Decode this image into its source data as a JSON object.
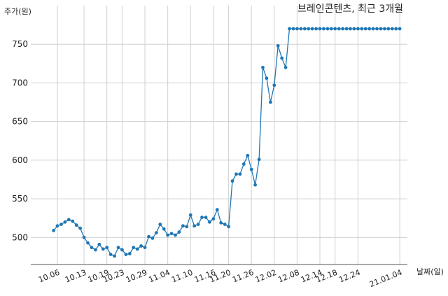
{
  "chart_data": {
    "type": "line",
    "title": "브레인콘텐츠, 최근 3개월",
    "xlabel": "날짜(일)",
    "ylabel": "주가(원)",
    "ylim": [
      465,
      800
    ],
    "yticks": [
      500,
      550,
      600,
      650,
      700,
      750
    ],
    "xlim": [
      "2020-09-29",
      "2021-01-06"
    ],
    "xtick_dates": [
      "2020-10-06",
      "2020-10-13",
      "2020-10-19",
      "2020-10-23",
      "2020-10-29",
      "2020-11-04",
      "2020-11-10",
      "2020-11-16",
      "2020-11-20",
      "2020-11-26",
      "2020-12-02",
      "2020-12-08",
      "2020-12-14",
      "2020-12-18",
      "2020-12-24",
      "2021-01-04"
    ],
    "xtick_labels": [
      "10.06",
      "10.13",
      "10.19",
      "10.23",
      "10.29",
      "11.04",
      "11.10",
      "11.16",
      "11.20",
      "11.26",
      "12.02",
      "12.08",
      "12.14",
      "12.18",
      "12.24",
      "21.01.04"
    ],
    "grid": true,
    "legend": "none",
    "color": "#1f77b4",
    "series": [
      {
        "x": [
          "2020-10-05",
          "2020-10-06",
          "2020-10-07",
          "2020-10-08",
          "2020-10-09",
          "2020-10-10",
          "2020-10-11",
          "2020-10-12",
          "2020-10-13",
          "2020-10-14",
          "2020-10-15",
          "2020-10-16",
          "2020-10-17",
          "2020-10-18",
          "2020-10-19",
          "2020-10-20",
          "2020-10-21",
          "2020-10-22",
          "2020-10-23",
          "2020-10-24",
          "2020-10-25",
          "2020-10-26",
          "2020-10-27",
          "2020-10-28",
          "2020-10-29",
          "2020-10-30",
          "2020-10-31",
          "2020-11-01",
          "2020-11-02",
          "2020-11-03",
          "2020-11-04",
          "2020-11-05",
          "2020-11-06",
          "2020-11-07",
          "2020-11-08",
          "2020-11-09",
          "2020-11-10",
          "2020-11-11",
          "2020-11-12",
          "2020-11-13",
          "2020-11-14",
          "2020-11-15",
          "2020-11-16",
          "2020-11-17",
          "2020-11-18",
          "2020-11-19",
          "2020-11-20",
          "2020-11-21",
          "2020-11-22",
          "2020-11-23",
          "2020-11-24",
          "2020-11-25",
          "2020-11-26",
          "2020-11-27",
          "2020-11-28",
          "2020-11-29",
          "2020-11-30",
          "2020-12-01",
          "2020-12-02",
          "2020-12-03",
          "2020-12-04",
          "2020-12-05",
          "2020-12-06",
          "2020-12-07",
          "2020-12-08",
          "2020-12-09",
          "2020-12-10",
          "2020-12-11",
          "2020-12-12",
          "2020-12-13",
          "2020-12-14",
          "2020-12-15",
          "2020-12-16",
          "2020-12-17",
          "2020-12-18",
          "2020-12-19",
          "2020-12-20",
          "2020-12-21",
          "2020-12-22",
          "2020-12-23",
          "2020-12-24",
          "2020-12-25",
          "2020-12-26",
          "2020-12-27",
          "2020-12-28",
          "2020-12-29",
          "2020-12-30",
          "2020-12-31",
          "2021-01-01",
          "2021-01-02",
          "2021-01-03",
          "2021-01-04"
        ],
        "values": [
          509,
          515,
          517,
          520,
          523,
          521,
          516,
          512,
          500,
          493,
          487,
          484,
          491,
          485,
          487,
          478,
          476,
          487,
          484,
          478,
          479,
          487,
          485,
          489,
          487,
          501,
          499,
          506,
          517,
          511,
          503,
          505,
          503,
          507,
          515,
          514,
          529,
          515,
          517,
          526,
          526,
          520,
          524,
          536,
          519,
          517,
          514,
          573,
          582,
          582,
          595,
          606,
          588,
          568,
          601,
          720,
          706,
          675,
          697,
          748,
          732,
          720,
          770,
          770,
          770,
          770,
          770,
          770,
          770,
          770,
          770,
          770,
          770,
          770,
          770,
          770,
          770,
          770,
          770,
          770,
          770,
          770,
          770,
          770,
          770,
          770,
          770,
          770,
          770,
          770,
          770,
          770
        ]
      }
    ]
  }
}
